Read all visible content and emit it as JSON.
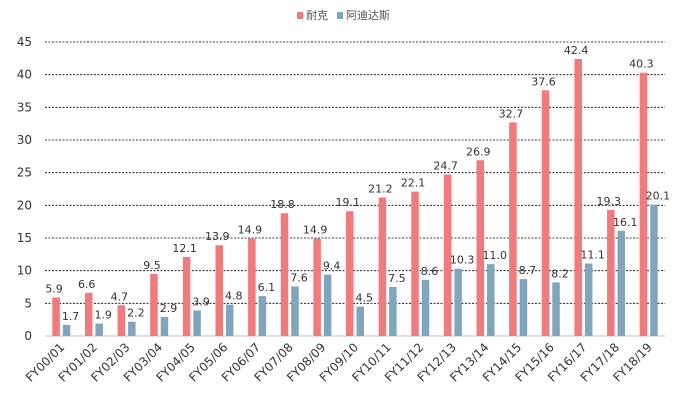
{
  "chart_data": {
    "type": "bar",
    "categories": [
      "FY00/01",
      "FY01/02",
      "FY02/03",
      "FY03/04",
      "FY04/05",
      "FY05/06",
      "FY06/07",
      "FY07/08",
      "FY08/09",
      "FY09/10",
      "FY10/11",
      "FY11/12",
      "FY12/13",
      "FY13/14",
      "FY14/15",
      "FY15/16",
      "FY16/17",
      "FY17/18",
      "FY18/19"
    ],
    "series": [
      {
        "name": "耐克",
        "color": "#f4797a",
        "values": [
          5.9,
          6.6,
          4.7,
          9.5,
          12.1,
          13.9,
          14.9,
          18.8,
          14.9,
          19.1,
          21.2,
          22.1,
          24.7,
          26.9,
          32.7,
          37.6,
          42.4,
          19.3,
          40.3
        ],
        "labels": [
          "5.9",
          "6.6",
          "4.7",
          "9.5",
          "12.1",
          "13.9",
          "14.9",
          "18.8",
          "14.9",
          "19.1",
          "21.2",
          "22.1",
          "24.7",
          "26.9",
          "32.7",
          "37.6",
          "42.4",
          "19.3",
          "40.3"
        ]
      },
      {
        "name": "阿迪达斯",
        "color": "#7ea6bf",
        "values": [
          1.7,
          1.9,
          2.2,
          2.9,
          3.9,
          4.8,
          6.1,
          7.6,
          9.4,
          4.5,
          7.5,
          8.6,
          10.3,
          11.0,
          8.7,
          8.2,
          11.1,
          16.1,
          20.1
        ],
        "labels": [
          "1.7",
          "1.9",
          "2.2",
          "2.9",
          "3.9",
          "4.8",
          "6.1",
          "7.6",
          "9.4",
          "4.5",
          "7.5",
          "8.6",
          "10.3",
          "11.0",
          "8.7",
          "8.2",
          "11.1",
          "16.1",
          "20.1"
        ]
      }
    ],
    "ylim": [
      0,
      45
    ],
    "yticks": [
      0,
      5,
      10,
      15,
      20,
      25,
      30,
      35,
      40,
      45
    ],
    "legend_position": "top-center",
    "grid": true,
    "title": "",
    "xlabel": "",
    "ylabel": ""
  }
}
